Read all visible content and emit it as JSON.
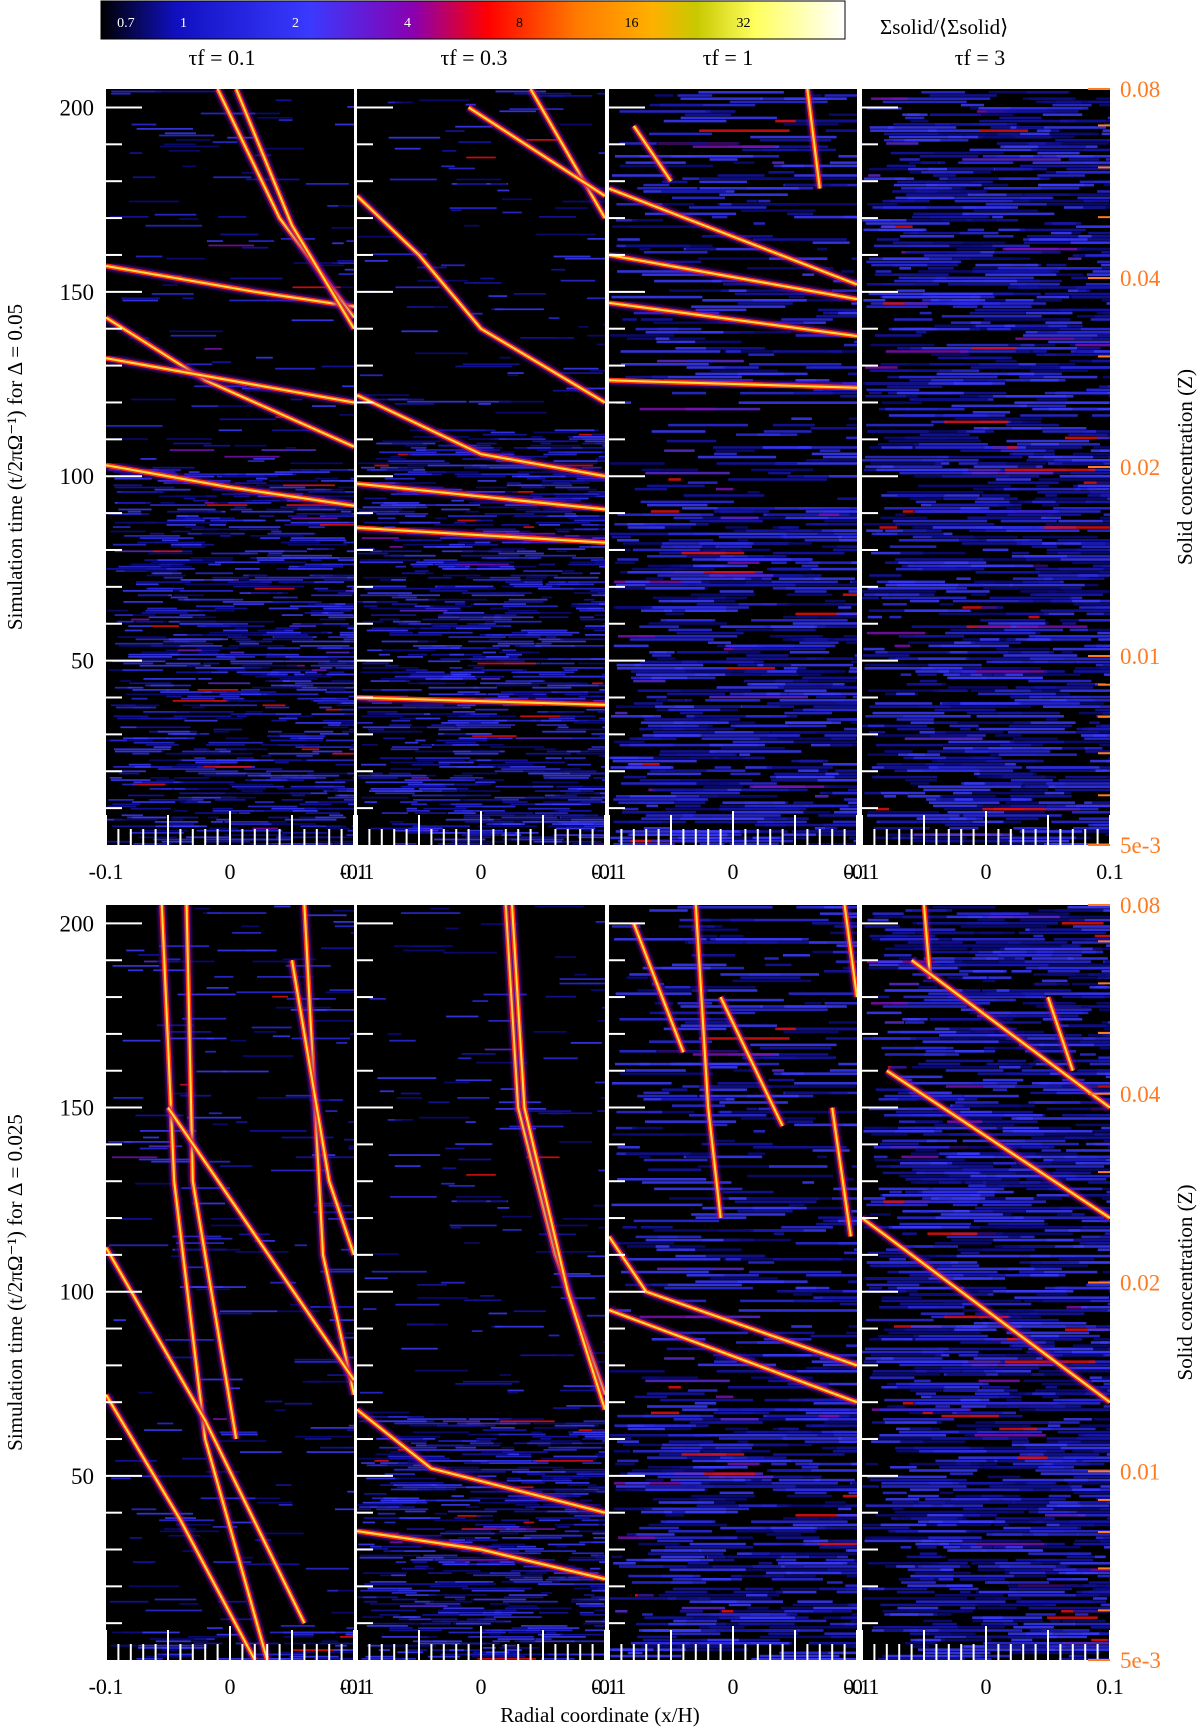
{
  "chart_data": {
    "type": "heatmap",
    "description_title": "",
    "colorbar": {
      "label": "Σsolid/⟨Σsolid⟩",
      "ticks": [
        "0.7",
        "1",
        "2",
        "4",
        "8",
        "16",
        "32"
      ],
      "tick_values": [
        0.7,
        1,
        2,
        4,
        8,
        16,
        32
      ],
      "scale": "log",
      "colormap": [
        "#000000",
        "#1010c0",
        "#3a3aff",
        "#8a00b0",
        "#ff0000",
        "#ff7a00",
        "#ffb000",
        "#c8c800",
        "#ffff60",
        "#ffffff"
      ]
    },
    "column_titles": [
      "τf = 0.1",
      "τf = 0.3",
      "τf = 1",
      "τf = 3"
    ],
    "x_axis": {
      "label": "Radial coordinate (x/H)",
      "range": [
        -0.1,
        0.1
      ],
      "ticks": [
        "-0.1",
        "0",
        "0.1"
      ],
      "tick_values": [
        -0.1,
        0,
        0.1
      ]
    },
    "rows": [
      {
        "ylabel": "Simulation time (t/2πΩ⁻¹) for Δ = 0.05",
        "y_range": [
          0,
          205
        ],
        "y_ticks": [
          "50",
          "100",
          "150",
          "200"
        ],
        "y_tick_values": [
          50,
          100,
          150,
          200
        ],
        "right_axis": {
          "label": "Solid concentration (Z)",
          "scale": "log",
          "ticks": [
            "5e-3",
            "0.01",
            "0.02",
            "0.04",
            "0.08"
          ],
          "tick_values": [
            0.005,
            0.01,
            0.02,
            0.04,
            0.08
          ]
        },
        "panels": [
          {
            "tau_f": 0.1,
            "filaments": [
              [
                [
                  -0.1,
                  143
                ],
                [
                  -0.02,
                  126
                ],
                [
                  0.1,
                  108
                ]
              ],
              [
                [
                  -0.1,
                  103
                ],
                [
                  0,
                  97
                ],
                [
                  0.1,
                  92
                ]
              ],
              [
                [
                  -0.1,
                  157
                ],
                [
                  0.02,
                  150
                ],
                [
                  0.1,
                  146
                ]
              ],
              [
                [
                  -0.01,
                  205
                ],
                [
                  0.04,
                  170
                ],
                [
                  0.1,
                  143
                ]
              ],
              [
                [
                  0.005,
                  205
                ],
                [
                  0.05,
                  168
                ],
                [
                  0.1,
                  140
                ]
              ],
              [
                [
                  -0.1,
                  132
                ],
                [
                  0.1,
                  120
                ]
              ]
            ]
          },
          {
            "tau_f": 0.3,
            "filaments": [
              [
                [
                  -0.1,
                  176
                ],
                [
                  -0.05,
                  160
                ],
                [
                  0,
                  140
                ],
                [
                  0.1,
                  120
                ]
              ],
              [
                [
                  -0.1,
                  122
                ],
                [
                  0,
                  106
                ],
                [
                  0.1,
                  100
                ]
              ],
              [
                [
                  0.04,
                  205
                ],
                [
                  0.1,
                  170
                ]
              ],
              [
                [
                  -0.01,
                  200
                ],
                [
                  0.1,
                  176
                ]
              ],
              [
                [
                  -0.1,
                  98
                ],
                [
                  0.1,
                  91
                ]
              ],
              [
                [
                  -0.1,
                  86
                ],
                [
                  0.1,
                  82
                ]
              ],
              [
                [
                  -0.1,
                  40
                ],
                [
                  0.1,
                  38
                ]
              ]
            ]
          },
          {
            "tau_f": 1,
            "filaments": [
              [
                [
                  -0.1,
                  178
                ],
                [
                  0.1,
                  152
                ]
              ],
              [
                [
                  -0.1,
                  160
                ],
                [
                  0.1,
                  148
                ]
              ],
              [
                [
                  -0.1,
                  147
                ],
                [
                  0.1,
                  138
                ]
              ],
              [
                [
                  0.06,
                  205
                ],
                [
                  0.07,
                  178
                ]
              ],
              [
                [
                  -0.1,
                  126
                ],
                [
                  0.1,
                  124
                ]
              ],
              [
                [
                  -0.08,
                  195
                ],
                [
                  -0.05,
                  180
                ]
              ]
            ]
          },
          {
            "tau_f": 3,
            "filaments": []
          }
        ]
      },
      {
        "ylabel": "Simulation time (t/2πΩ⁻¹) for Δ = 0.025",
        "y_range": [
          0,
          205
        ],
        "y_ticks": [
          "50",
          "100",
          "150",
          "200"
        ],
        "y_tick_values": [
          50,
          100,
          150,
          200
        ],
        "right_axis": {
          "label": "Solid concentration (Z)",
          "scale": "log",
          "ticks": [
            "5e-3",
            "0.01",
            "0.02",
            "0.04",
            "0.08"
          ],
          "tick_values": [
            0.005,
            0.01,
            0.02,
            0.04,
            0.08
          ]
        },
        "panels": [
          {
            "tau_f": 0.1,
            "filaments": [
              [
                [
                  -0.055,
                  205
                ],
                [
                  -0.045,
                  130
                ],
                [
                  -0.02,
                  60
                ],
                [
                  0.03,
                  0
                ]
              ],
              [
                [
                  -0.035,
                  205
                ],
                [
                  -0.03,
                  130
                ],
                [
                  0.005,
                  60
                ]
              ],
              [
                [
                  -0.1,
                  72
                ],
                [
                  -0.04,
                  38
                ],
                [
                  0.02,
                  0
                ]
              ],
              [
                [
                  -0.1,
                  112
                ],
                [
                  -0.02,
                  65
                ],
                [
                  0.06,
                  10
                ]
              ],
              [
                [
                  0.06,
                  205
                ],
                [
                  0.075,
                  110
                ],
                [
                  0.1,
                  72
                ]
              ],
              [
                [
                  0.05,
                  190
                ],
                [
                  0.08,
                  130
                ],
                [
                  0.1,
                  110
                ]
              ],
              [
                [
                  -0.05,
                  150
                ],
                [
                  0.1,
                  76
                ]
              ]
            ]
          },
          {
            "tau_f": 0.3,
            "filaments": [
              [
                [
                  0.02,
                  205
                ],
                [
                  0.03,
                  150
                ],
                [
                  0.06,
                  110
                ],
                [
                  0.1,
                  72
                ]
              ],
              [
                [
                  0.025,
                  205
                ],
                [
                  0.035,
                  150
                ],
                [
                  0.07,
                  100
                ],
                [
                  0.1,
                  68
                ]
              ],
              [
                [
                  -0.1,
                  68
                ],
                [
                  -0.04,
                  52
                ],
                [
                  0.1,
                  40
                ]
              ],
              [
                [
                  -0.1,
                  35
                ],
                [
                  0,
                  30
                ],
                [
                  0.1,
                  22
                ]
              ]
            ]
          },
          {
            "tau_f": 1,
            "filaments": [
              [
                [
                  -0.03,
                  205
                ],
                [
                  -0.02,
                  150
                ],
                [
                  -0.01,
                  120
                ]
              ],
              [
                [
                  0.09,
                  205
                ],
                [
                  0.1,
                  180
                ]
              ],
              [
                [
                  0.08,
                  150
                ],
                [
                  0.095,
                  115
                ]
              ],
              [
                [
                  -0.1,
                  115
                ],
                [
                  -0.07,
                  100
                ],
                [
                  0.1,
                  80
                ]
              ],
              [
                [
                  -0.1,
                  95
                ],
                [
                  0.1,
                  70
                ]
              ],
              [
                [
                  -0.08,
                  200
                ],
                [
                  -0.04,
                  165
                ]
              ],
              [
                [
                  -0.01,
                  180
                ],
                [
                  0.04,
                  145
                ]
              ]
            ]
          },
          {
            "tau_f": 3,
            "filaments": [
              [
                [
                  -0.05,
                  205
                ],
                [
                  -0.045,
                  185
                ]
              ],
              [
                [
                  -0.1,
                  120
                ],
                [
                  0.1,
                  70
                ]
              ],
              [
                [
                  -0.08,
                  160
                ],
                [
                  0.1,
                  120
                ]
              ],
              [
                [
                  -0.06,
                  190
                ],
                [
                  0.1,
                  150
                ]
              ],
              [
                [
                  0.05,
                  180
                ],
                [
                  0.07,
                  160
                ]
              ]
            ]
          }
        ]
      }
    ]
  }
}
